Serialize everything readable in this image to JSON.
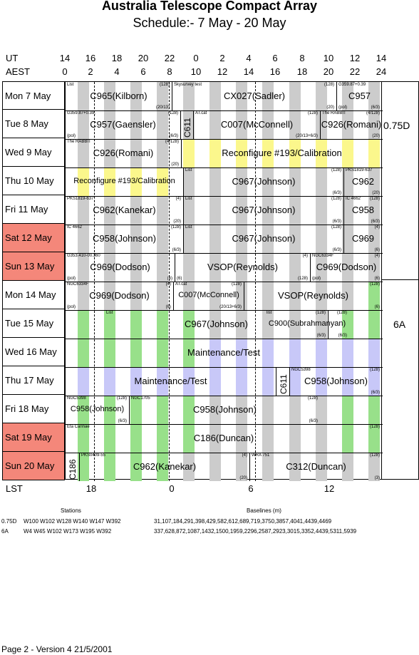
{
  "header": {
    "title": "Australia Telescope Compact Array",
    "subtitle": "Schedule:- 7  May - 20 May",
    "ut_label": "UT",
    "aest_label": "AEST",
    "lst_label": "LST",
    "ut_ticks": [
      "14",
      "16",
      "18",
      "20",
      "22",
      "0",
      "2",
      "4",
      "6",
      "8",
      "10",
      "12",
      "14"
    ],
    "aest_ticks": [
      "0",
      "2",
      "4",
      "6",
      "8",
      "10",
      "12",
      "14",
      "16",
      "18",
      "20",
      "22",
      "24"
    ],
    "lst_ticks": [
      "18",
      "0",
      "6",
      "12"
    ]
  },
  "days": [
    {
      "label": "Mon  7  May",
      "weekend": false
    },
    {
      "label": "Tue  8  May",
      "weekend": false
    },
    {
      "label": "Wed  9  May",
      "weekend": false
    },
    {
      "label": "Thu  10  May",
      "weekend": false
    },
    {
      "label": "Fri   11  May",
      "weekend": false
    },
    {
      "label": "Sat   12 May",
      "weekend": true
    },
    {
      "label": "Sun  13 May",
      "weekend": true
    },
    {
      "label": "Mon  14 May",
      "weekend": false
    },
    {
      "label": "Tue   15 May",
      "weekend": false
    },
    {
      "label": "Wed  16 May",
      "weekend": false
    },
    {
      "label": "Thu  17 May",
      "weekend": false
    },
    {
      "label": "Fri    18 May",
      "weekend": false
    },
    {
      "label": "Sat   19 May",
      "weekend": true
    },
    {
      "label": "Sun  20 May",
      "weekend": true
    }
  ],
  "arrays": [
    {
      "label": "0.75D"
    },
    {
      "label": "6A"
    }
  ],
  "rows": [
    [
      {
        "name": "C965(Kilborn)",
        "tl": "List",
        "tr": "(128)",
        "br": "(20/13)"
      },
      {
        "name": "CX027(Sadler)",
        "tl": "Skysurvey test",
        "tr": "(128)",
        "br": "(20)"
      },
      {
        "name": "C957",
        "tl": "G359.87+0.39",
        "bl": "(pol)",
        "br": "(6/3)"
      }
    ],
    [
      {
        "name": "C957(Gaensler)",
        "tl": "G359.87+0.39,",
        "tr": "(128)",
        "bl": "(pol)",
        "br": "(6/3)"
      },
      {
        "name": "C611",
        "vertical": true
      },
      {
        "name": "C007(McConnell)",
        "tl": "AT.cat",
        "tr": "(128)",
        "br": "(20/13+6/3)"
      },
      {
        "name": "C926(Romani)",
        "tl": "The RABBIT",
        "tr": "(4/128)",
        "br": "(20)"
      }
    ],
    [
      {
        "name": "C926(Romani)",
        "tl": "The RABBIT",
        "tr": "(4/128)",
        "br": "(20)"
      },
      {
        "name": "Reconfigure #193/Calibration"
      }
    ],
    [
      {
        "name": "Reconfigure #193/Calibration",
        "small": true
      },
      {
        "name": "C967(Johnson)",
        "tl": "List",
        "tr": "(128)",
        "br": "(6/3)"
      },
      {
        "name": "C962",
        "tl": "PKS1819-637",
        "br": "(20)"
      }
    ],
    [
      {
        "name": "C962(Kanekar)",
        "tl": "PKS1819-637",
        "tr": "(4)",
        "br": "(20)"
      },
      {
        "name": "C967(Johnson)",
        "tl": "List",
        "tr": "(128)",
        "br": "(6/3)"
      },
      {
        "name": "C958",
        "tl": "IC 4662",
        "tr": "(128)",
        "br": "(6/3)"
      }
    ],
    [
      {
        "name": "C958(Johnson)",
        "tl": "IC 4662",
        "tr": "(128)",
        "br": "(6/3)"
      },
      {
        "name": "C967(Johnson)",
        "tl": "List",
        "tr": "(128)",
        "br": "(6/3)"
      },
      {
        "name": "C969",
        "tr": "(4)",
        "br": "(6)"
      }
    ],
    [
      {
        "name": "C969(Dodson)",
        "tl": "G353.410-00.360",
        "bl": "(pol)",
        "br": "(6)"
      },
      {
        "name": "VSOP(Reynolds)",
        "tr": "(4)",
        "br": "(128)",
        "bl": "(6)"
      },
      {
        "name": "C969(Dodson)",
        "tl": "NGC6334F",
        "tr": "(4)",
        "bl": "(pol)",
        "br": "(6)"
      }
    ],
    [
      {
        "name": "C969(Dodson)",
        "tl": "NGC6334F",
        "tr": "(4)",
        "bl": "(pol)",
        "br": "(6)"
      },
      {
        "name": "C007(McConnell)",
        "tl": "AT.cat",
        "tr": "(128)",
        "br": "(20/13+6/3)",
        "small": true
      },
      {
        "name": "VSOP(Reynolds)",
        "tr": "(128)",
        "br": "(6)"
      }
    ],
    [
      {
        "name": "C967(Johnson)",
        "tl": "List",
        "tr": "(128)",
        "br": "(6/3)"
      },
      {
        "name": "C900(Subrahmanyan)",
        "tl": "list",
        "tr": "(128)",
        "br": "(6/3)",
        "small": true
      }
    ],
    [
      {
        "name": "Maintenance/Test"
      }
    ],
    [
      {
        "name": "Maintenance/Test"
      },
      {
        "name": "C611",
        "vertical": true
      },
      {
        "name": "C958(Johnson)",
        "tl": "NGC5398",
        "tr": "(128)",
        "br": "(6/3)"
      }
    ],
    [
      {
        "name": "C958(Johnson)",
        "tl": "NGC5398",
        "tr": "(128)",
        "br": "(6/3)",
        "small": true
      },
      {
        "name": "C958(Johnson)",
        "tl": "NGC1705",
        "tr": "(128)",
        "br": "(6/3)"
      }
    ],
    [
      {
        "name": "C186(Duncan)",
        "tl": "Eta Carinae",
        "tr": "(128)"
      }
    ],
    [
      {
        "name": "C186",
        "vertical": true
      },
      {
        "name": "C962(Kanekar)",
        "tl": "PKS0409-55",
        "tr": "(4)",
        "br": "(20)"
      },
      {
        "name": "C312(Duncan)",
        "tl": "WRA 751",
        "tr": "(128)",
        "br": "(3)"
      }
    ]
  ],
  "footer": {
    "stations_header": "Stations",
    "baselines_header": "Baselines (m)",
    "config_rows": [
      {
        "array": "0.75D",
        "stations": "W100  W102  W128  W140  W147  W392",
        "baselines": "31,107,184,291,398,429,582,612,689,719,3750,3857,4041,4439,4469"
      },
      {
        "array": "6A",
        "stations": "W4   W45   W102  W173  W195  W392",
        "baselines": "337,628,872,1087,1432,1500,1959,2296,2587,2923,3015,3352,4439,5311,5939"
      }
    ],
    "page_info": "Page 2 - Version 4  21/5/2001"
  },
  "colors": {
    "weekend": "#f4877a",
    "sun_stripe": "#cccccc",
    "reconfig": "#fbf78c",
    "test_green": "#98e08a",
    "maintenance": "#c8c8f8"
  }
}
